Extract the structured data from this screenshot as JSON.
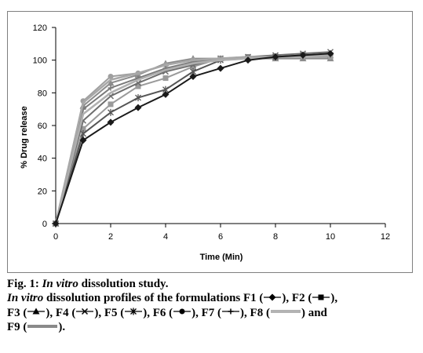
{
  "chart_data": {
    "type": "line",
    "xlabel": "Time (Min)",
    "ylabel": "% Drug release",
    "xlim": [
      0,
      12
    ],
    "ylim": [
      0,
      120
    ],
    "xticks": [
      0,
      2,
      4,
      6,
      8,
      10,
      12
    ],
    "yticks": [
      0,
      20,
      40,
      60,
      80,
      100,
      120
    ],
    "grid": false,
    "x": [
      0,
      1,
      2,
      3,
      4,
      5,
      6,
      7,
      8,
      9,
      10
    ],
    "series": [
      {
        "name": "F1",
        "color": "#1a1a1a",
        "marker": "diamond",
        "values": [
          0,
          51,
          62,
          71,
          79,
          90,
          95,
          100,
          102,
          103,
          104
        ]
      },
      {
        "name": "F2",
        "color": "#9a9a9a",
        "marker": "square",
        "values": [
          0,
          58,
          73,
          84,
          89,
          96,
          101,
          102,
          102,
          102,
          102
        ]
      },
      {
        "name": "F3",
        "color": "#8c8c8c",
        "marker": "triangle",
        "values": [
          0,
          72,
          86,
          91,
          98,
          101,
          101,
          101,
          101,
          101,
          101
        ]
      },
      {
        "name": "F4",
        "color": "#6e6e6e",
        "marker": "x",
        "values": [
          0,
          63,
          78,
          86,
          93,
          97,
          101,
          102,
          103,
          104,
          105
        ]
      },
      {
        "name": "F5",
        "color": "#555555",
        "marker": "star",
        "values": [
          0,
          55,
          68,
          77,
          82,
          93,
          100,
          101,
          102,
          103,
          103
        ]
      },
      {
        "name": "F6",
        "color": "#9f9f9f",
        "marker": "circle",
        "values": [
          0,
          75,
          90,
          92,
          97,
          100,
          101,
          101,
          102,
          102,
          102
        ]
      },
      {
        "name": "F7",
        "color": "#7a7a7a",
        "marker": "plus",
        "values": [
          0,
          70,
          83,
          89,
          95,
          99,
          101,
          102,
          102,
          102,
          103
        ]
      },
      {
        "name": "F8",
        "color": "#b0b0b0",
        "marker": "none",
        "values": [
          0,
          67,
          80,
          88,
          94,
          98,
          100,
          101,
          102,
          102,
          103
        ]
      },
      {
        "name": "F9",
        "color": "#a8a8a8",
        "marker": "none",
        "values": [
          0,
          74,
          88,
          92,
          97,
          100,
          101,
          102,
          102,
          103,
          103
        ]
      }
    ]
  },
  "caption": {
    "title_prefix": "Fig. 1: ",
    "title_italic": "In vitro",
    "title_rest": " dissolution study.",
    "line2_italic": "In vitro",
    "line2_text": " dissolution profiles of the formulations F1 (",
    "line2_f2": "), F2 (",
    "line2_end": "),",
    "line3_f3": "F3 (",
    "line3_f4": "), F4 (",
    "line3_f5": "), F5 (",
    "line3_f6": "), F6 (",
    "line3_f7": "), F7 (",
    "line3_f8": "), F8 (",
    "line3_end": ") and",
    "line4_f9": "F9 (",
    "line4_end": ")."
  }
}
